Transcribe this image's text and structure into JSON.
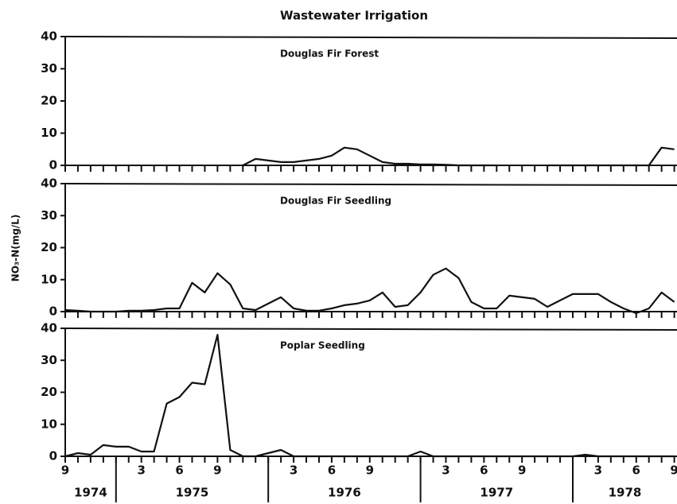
{
  "title": "Wastewater Irrigation",
  "y_label": "NO₃-N(mg/L)",
  "x_axis": {
    "categories": [
      "9",
      null,
      null,
      null,
      null,
      null,
      "3",
      null,
      null,
      "6",
      null,
      null,
      "9",
      null,
      null,
      null,
      null,
      null,
      "3",
      null,
      null,
      "6",
      null,
      null,
      "9",
      null,
      null,
      null,
      null,
      null,
      "3",
      null,
      null,
      "6",
      null,
      null,
      "9",
      null,
      null,
      null,
      null,
      null,
      "3",
      null,
      null,
      "6",
      null,
      null,
      "9"
    ],
    "years": [
      "1974",
      "1975",
      "1976",
      "1977",
      "1978"
    ]
  },
  "chart_data": [
    {
      "type": "line",
      "title": "Douglas Fir Forest",
      "color": "#111111",
      "ylim": [
        0,
        40
      ],
      "yticks": [
        0,
        10,
        20,
        30,
        40
      ],
      "values": [
        null,
        null,
        null,
        null,
        null,
        null,
        null,
        null,
        null,
        null,
        null,
        null,
        null,
        null,
        0,
        2,
        1.5,
        1,
        1,
        1.5,
        2,
        3,
        5.5,
        5,
        3,
        1,
        0.5,
        0.5,
        0.3,
        0.3,
        0.2,
        0,
        0,
        0,
        0,
        null,
        null,
        null,
        0,
        0,
        0,
        0,
        0,
        0,
        0,
        0,
        0,
        5.5,
        5
      ]
    },
    {
      "type": "line",
      "title": "Douglas Fir Seedling",
      "color": "#111111",
      "ylim": [
        0,
        40
      ],
      "yticks": [
        0,
        10,
        20,
        30,
        40
      ],
      "values": [
        0.5,
        0.3,
        0,
        0,
        0,
        0.3,
        0.3,
        0.5,
        1,
        1,
        9,
        6,
        12,
        8.5,
        1,
        0.5,
        2.5,
        4.5,
        1,
        0.3,
        0.3,
        1,
        2,
        2.5,
        3.5,
        6,
        1.5,
        2,
        6,
        11.5,
        13.5,
        10.5,
        3,
        1,
        1,
        5,
        4.5,
        4,
        1.5,
        3.5,
        5.5,
        5.5,
        5.5,
        3,
        1,
        -0.5,
        1,
        6,
        3
      ]
    },
    {
      "type": "line",
      "title": "Poplar Seedling",
      "color": "#111111",
      "ylim": [
        0,
        40
      ],
      "yticks": [
        0,
        10,
        20,
        30,
        40
      ],
      "values": [
        0,
        1,
        0.5,
        3.5,
        3,
        3,
        1.5,
        1.5,
        16.5,
        18.5,
        23,
        22.5,
        38,
        2,
        0,
        0,
        1,
        2,
        0,
        0,
        0,
        0,
        0,
        0,
        0,
        0,
        0,
        0,
        1.5,
        0,
        0,
        0,
        0,
        0,
        0,
        0,
        0,
        0,
        0,
        0,
        0,
        0.5,
        0,
        0,
        0,
        0,
        0,
        0,
        0
      ]
    }
  ]
}
